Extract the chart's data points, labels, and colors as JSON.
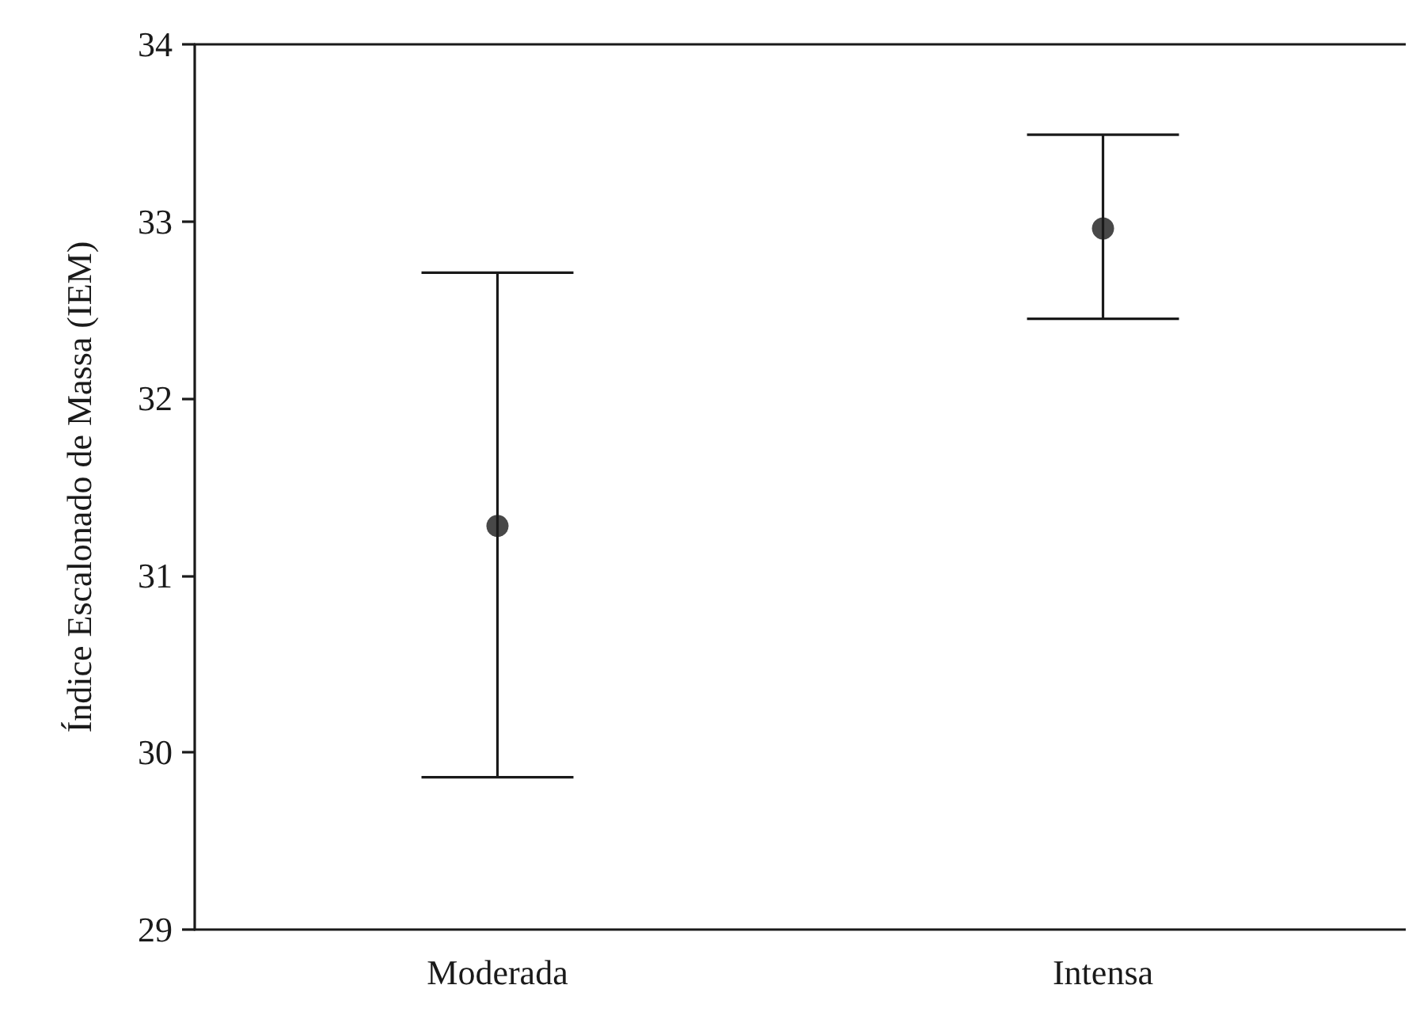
{
  "chart_data": {
    "type": "scatter",
    "ylabel": "Índice Escalonado de Massa (IEM)",
    "categories": [
      "Moderada",
      "Intensa"
    ],
    "values": [
      31.28,
      32.96
    ],
    "errors": [
      [
        29.86,
        32.71
      ],
      [
        32.45,
        33.49
      ]
    ],
    "color": "#1a1a1a",
    "marker": "circle",
    "ylim": [
      29,
      34
    ],
    "yticks": [
      29,
      30,
      31,
      32,
      33,
      34
    ],
    "grid": false
  }
}
